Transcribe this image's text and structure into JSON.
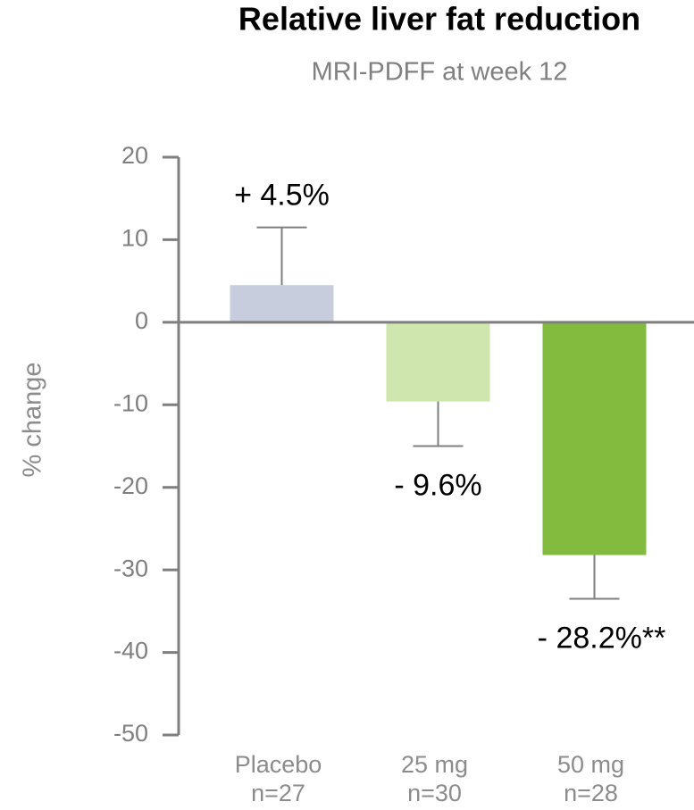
{
  "chart_data": {
    "type": "bar",
    "title": "Relative liver fat reduction",
    "subtitle": "MRI-PDFF at week 12",
    "y_label": "% change",
    "categories": [
      "Placebo",
      "25 mg",
      "50 mg"
    ],
    "sample_sizes": [
      "n=27",
      "n=30",
      "n=28"
    ],
    "values": [
      4.5,
      -9.6,
      -28.2
    ],
    "errors": [
      7,
      5.4,
      5.3
    ],
    "value_labels": [
      "+ 4.5%",
      "- 9.6%",
      "- 28.2%**"
    ],
    "colors": [
      "#c8cddd",
      "#cfe6ae",
      "#83bb3f"
    ],
    "ylim": [
      -50,
      20
    ],
    "yticks": [
      -50,
      -40,
      -30,
      -20,
      -10,
      0,
      10,
      20
    ]
  }
}
